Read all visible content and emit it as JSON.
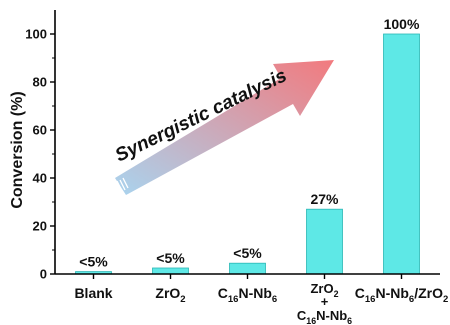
{
  "chart_data": {
    "type": "bar",
    "ylabel": "Conversion (%)",
    "ylim": [
      0,
      110
    ],
    "yticks": [
      "0",
      "20",
      "40",
      "60",
      "80",
      "100"
    ],
    "categories": [
      {
        "parts": [
          {
            "t": "Blank",
            "sub": false
          }
        ]
      },
      {
        "parts": [
          {
            "t": "ZrO",
            "sub": false
          },
          {
            "t": "2",
            "sub": true
          }
        ]
      },
      {
        "parts": [
          {
            "t": "C",
            "sub": false
          },
          {
            "t": "16",
            "sub": true
          },
          {
            "t": "N-Nb",
            "sub": false
          },
          {
            "t": "6",
            "sub": true
          }
        ]
      },
      {
        "lines": [
          [
            {
              "t": "ZrO",
              "sub": false
            },
            {
              "t": "2",
              "sub": true
            }
          ],
          [
            {
              "t": "+",
              "sub": false
            }
          ],
          [
            {
              "t": "C",
              "sub": false
            },
            {
              "t": "16",
              "sub": true
            },
            {
              "t": "N-Nb",
              "sub": false
            },
            {
              "t": "6",
              "sub": true
            }
          ]
        ]
      },
      {
        "parts": [
          {
            "t": "C",
            "sub": false
          },
          {
            "t": "16",
            "sub": true
          },
          {
            "t": "N-Nb",
            "sub": false
          },
          {
            "t": "6",
            "sub": true
          },
          {
            "t": "/ZrO",
            "sub": false
          },
          {
            "t": "2",
            "sub": true
          }
        ]
      }
    ],
    "values": [
      1,
      2.5,
      4.5,
      27,
      100
    ],
    "data_labels": [
      "<5%",
      "<5%",
      "<5%",
      "27%",
      "100%"
    ],
    "annotation": "Synergistic catalysis",
    "bar_color": "#5ee8e6",
    "bar_edge": "#2ab7b5",
    "arrow_colors": [
      "#a9d4ef",
      "#f27a7e"
    ],
    "grid": false,
    "legend": "none"
  }
}
